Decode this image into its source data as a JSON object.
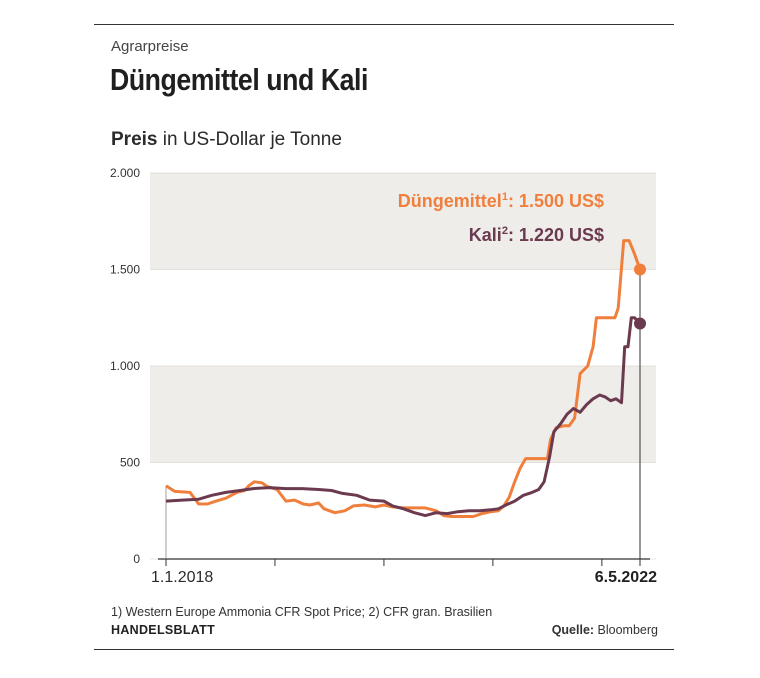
{
  "header": {
    "kicker": "Agrarpreise",
    "title": "Düngemittel und Kali",
    "subtitle_bold": "Preis",
    "subtitle_rest": " in US-Dollar je Tonne"
  },
  "footer": {
    "footnote": "1) Western Europe Ammonia CFR Spot Price; 2) CFR gran. Brasilien",
    "brand": "HANDELSBLATT",
    "source_label": "Quelle:",
    "source_value": " Bloomberg"
  },
  "chart_data": {
    "type": "line",
    "ylim": [
      0,
      2000
    ],
    "yticks": [
      0,
      500,
      1000,
      1500,
      2000
    ],
    "ytick_labels": [
      "0",
      "500",
      "1.000",
      "1.500",
      "2.000"
    ],
    "xlim": [
      2018.0,
      2022.4
    ],
    "x_start_label": "1.1.2018",
    "x_end_label": "6.5.2022",
    "colors": {
      "duenger": "#f07f3c",
      "kali": "#6b3a4f",
      "band": "#efedea",
      "axis": "#333333"
    },
    "annotations": [
      {
        "series": "duenger",
        "name": "Düngemittel",
        "sup": "1",
        "value_text": ": 1.500 US$"
      },
      {
        "series": "kali",
        "name": "Kali",
        "sup": "2",
        "value_text": ": 1.220 US$"
      }
    ],
    "series": [
      {
        "key": "duenger",
        "points": [
          [
            2018.0,
            380
          ],
          [
            2018.08,
            350
          ],
          [
            2018.22,
            345
          ],
          [
            2018.3,
            285
          ],
          [
            2018.38,
            285
          ],
          [
            2018.46,
            300
          ],
          [
            2018.55,
            315
          ],
          [
            2018.65,
            345
          ],
          [
            2018.72,
            355
          ],
          [
            2018.76,
            380
          ],
          [
            2018.81,
            400
          ],
          [
            2018.88,
            395
          ],
          [
            2018.93,
            375
          ],
          [
            2019.02,
            360
          ],
          [
            2019.1,
            300
          ],
          [
            2019.18,
            305
          ],
          [
            2019.26,
            285
          ],
          [
            2019.32,
            280
          ],
          [
            2019.4,
            290
          ],
          [
            2019.45,
            260
          ],
          [
            2019.55,
            240
          ],
          [
            2019.64,
            250
          ],
          [
            2019.72,
            275
          ],
          [
            2019.82,
            280
          ],
          [
            2019.92,
            270
          ],
          [
            2020.0,
            280
          ],
          [
            2020.08,
            270
          ],
          [
            2020.18,
            265
          ],
          [
            2020.28,
            265
          ],
          [
            2020.38,
            265
          ],
          [
            2020.48,
            250
          ],
          [
            2020.55,
            225
          ],
          [
            2020.62,
            220
          ],
          [
            2020.72,
            220
          ],
          [
            2020.82,
            220
          ],
          [
            2020.9,
            235
          ],
          [
            2020.98,
            245
          ],
          [
            2021.05,
            250
          ],
          [
            2021.1,
            275
          ],
          [
            2021.15,
            320
          ],
          [
            2021.2,
            400
          ],
          [
            2021.25,
            470
          ],
          [
            2021.3,
            520
          ],
          [
            2021.35,
            520
          ],
          [
            2021.42,
            520
          ],
          [
            2021.5,
            520
          ],
          [
            2021.53,
            620
          ],
          [
            2021.58,
            680
          ],
          [
            2021.65,
            690
          ],
          [
            2021.7,
            690
          ],
          [
            2021.75,
            730
          ],
          [
            2021.8,
            960
          ],
          [
            2021.87,
            1000
          ],
          [
            2021.92,
            1100
          ],
          [
            2021.95,
            1250
          ],
          [
            2022.0,
            1250
          ],
          [
            2022.06,
            1250
          ],
          [
            2022.12,
            1250
          ],
          [
            2022.15,
            1300
          ],
          [
            2022.2,
            1650
          ],
          [
            2022.25,
            1650
          ],
          [
            2022.3,
            1580
          ],
          [
            2022.35,
            1500
          ]
        ]
      },
      {
        "key": "kali",
        "points": [
          [
            2018.0,
            300
          ],
          [
            2018.15,
            305
          ],
          [
            2018.3,
            310
          ],
          [
            2018.42,
            330
          ],
          [
            2018.55,
            345
          ],
          [
            2018.68,
            355
          ],
          [
            2018.8,
            365
          ],
          [
            2018.95,
            370
          ],
          [
            2019.1,
            365
          ],
          [
            2019.25,
            365
          ],
          [
            2019.4,
            360
          ],
          [
            2019.52,
            355
          ],
          [
            2019.62,
            340
          ],
          [
            2019.75,
            330
          ],
          [
            2019.87,
            305
          ],
          [
            2020.0,
            300
          ],
          [
            2020.08,
            275
          ],
          [
            2020.18,
            260
          ],
          [
            2020.28,
            240
          ],
          [
            2020.38,
            225
          ],
          [
            2020.48,
            240
          ],
          [
            2020.58,
            235
          ],
          [
            2020.68,
            245
          ],
          [
            2020.78,
            250
          ],
          [
            2020.88,
            250
          ],
          [
            2020.98,
            255
          ],
          [
            2021.05,
            260
          ],
          [
            2021.12,
            280
          ],
          [
            2021.2,
            300
          ],
          [
            2021.28,
            330
          ],
          [
            2021.36,
            345
          ],
          [
            2021.42,
            360
          ],
          [
            2021.47,
            400
          ],
          [
            2021.52,
            530
          ],
          [
            2021.56,
            660
          ],
          [
            2021.62,
            700
          ],
          [
            2021.68,
            750
          ],
          [
            2021.74,
            780
          ],
          [
            2021.8,
            760
          ],
          [
            2021.86,
            800
          ],
          [
            2021.92,
            830
          ],
          [
            2021.98,
            850
          ],
          [
            2022.03,
            840
          ],
          [
            2022.08,
            820
          ],
          [
            2022.13,
            830
          ],
          [
            2022.18,
            810
          ],
          [
            2022.21,
            1100
          ],
          [
            2022.24,
            1100
          ],
          [
            2022.27,
            1250
          ],
          [
            2022.3,
            1250
          ],
          [
            2022.35,
            1220
          ]
        ]
      }
    ]
  }
}
